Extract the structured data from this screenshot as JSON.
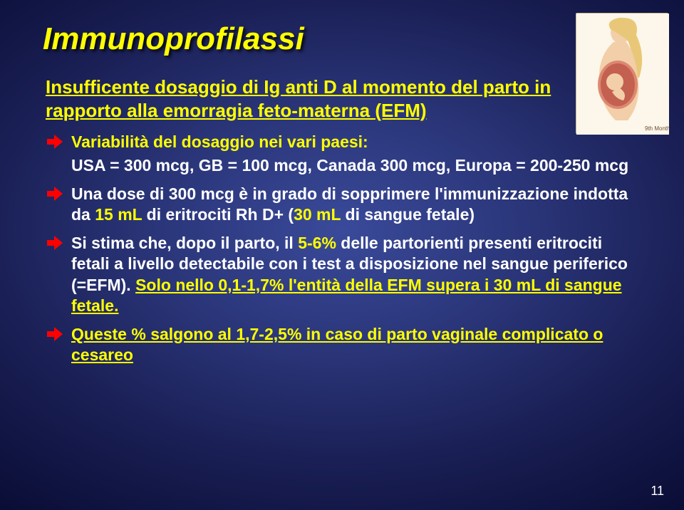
{
  "title": "Immunoprofilassi",
  "subtitle_l1": "Insufficente dosaggio di Ig anti D al momento del parto in",
  "subtitle_l2": "rapporto alla emorragia feto-materna (EFM)",
  "bullets": [
    {
      "parts": [
        {
          "t": "Variabilità del dosaggio nei vari paesi:",
          "c": "#ffff00",
          "u": false
        }
      ]
    },
    {
      "noArrow": true,
      "parts": [
        {
          "t": "USA = 300 mcg, GB = 100 mcg, Canada 300 mcg, Europa = 200-250 mcg",
          "c": "#ffffff",
          "u": false
        }
      ]
    },
    {
      "parts": [
        {
          "t": "Una dose di 300 mcg è in grado di sopprimere l'immunizzazione indotta da ",
          "c": "#ffffff",
          "u": false
        },
        {
          "t": "15 mL",
          "c": "#ffff00",
          "u": false
        },
        {
          "t": " di eritrociti Rh D+ (",
          "c": "#ffffff",
          "u": false
        },
        {
          "t": "30 mL",
          "c": "#ffff00",
          "u": false
        },
        {
          "t": " di sangue fetale)",
          "c": "#ffffff",
          "u": false
        }
      ]
    },
    {
      "parts": [
        {
          "t": "Si stima che, dopo il parto, il ",
          "c": "#ffffff",
          "u": false
        },
        {
          "t": "5-6%",
          "c": "#ffff00",
          "u": false
        },
        {
          "t": " delle partorienti presenti eritrociti fetali a livello detectabile con i test a disposizione nel sangue periferico (=EFM). ",
          "c": "#ffffff",
          "u": false
        },
        {
          "t": "Solo nello 0,1-1,7% l'entità della EFM supera i 30 mL di sangue fetale.",
          "c": "#ffff00",
          "u": true
        }
      ]
    },
    {
      "parts": [
        {
          "t": "Queste % salgono al 1,7-2,5% in caso di parto vaginale complicato o cesareo",
          "c": "#ffff00",
          "u": true
        }
      ]
    }
  ],
  "arrow_color": "#ff0000",
  "page_number": "11",
  "illustration_caption": "9th Month"
}
